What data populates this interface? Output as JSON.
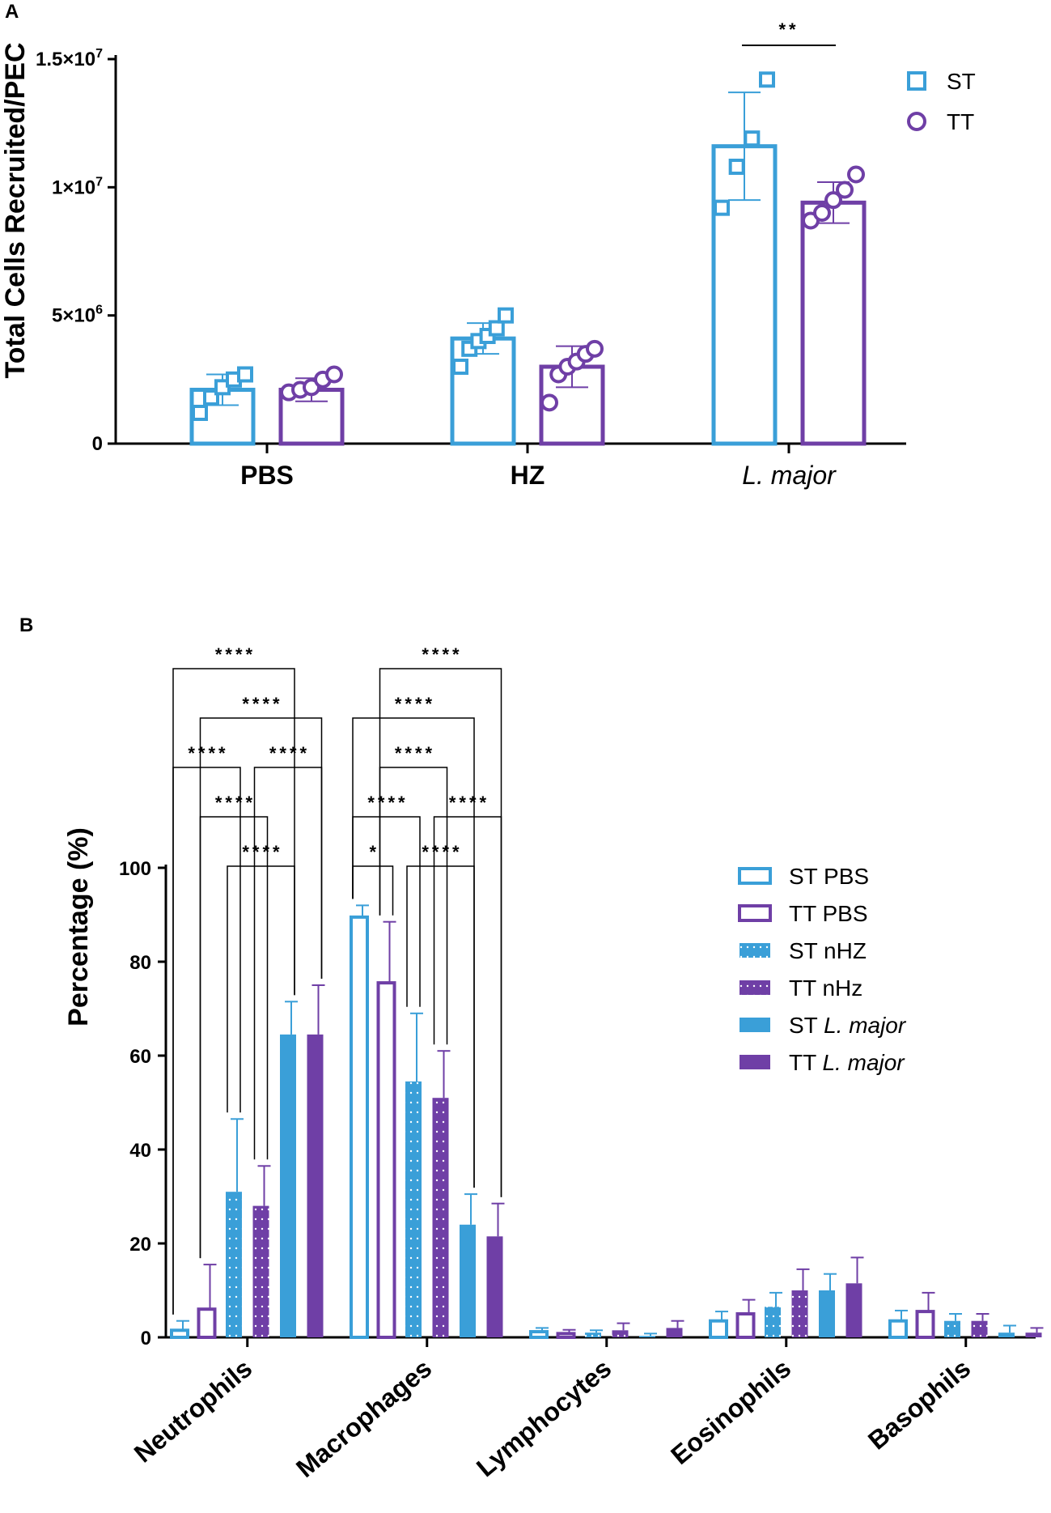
{
  "colors": {
    "st": "#3a9fd8",
    "tt": "#6f3fa6",
    "axis": "#000000"
  },
  "chart_data": [
    {
      "panel": "A",
      "type": "bar",
      "ylabel": "Total Cells Recruited/PEC",
      "y_ticks": [
        {
          "value": 0,
          "base": "0",
          "exp": ""
        },
        {
          "value": 5000000,
          "base": "5×10",
          "exp": "6"
        },
        {
          "value": 10000000,
          "base": "1×10",
          "exp": "7"
        },
        {
          "value": 15000000,
          "base": "1.5×10",
          "exp": "7"
        }
      ],
      "ylim": [
        0,
        15000000
      ],
      "categories": [
        "PBS",
        "HZ",
        "L. major"
      ],
      "italic_categories": [
        "L. major"
      ],
      "legend": [
        {
          "name": "ST",
          "marker": "square"
        },
        {
          "name": "TT",
          "marker": "circle"
        }
      ],
      "series": [
        {
          "name": "ST",
          "values": [
            2100000,
            4100000,
            11600000
          ],
          "errors": [
            600000,
            600000,
            2100000
          ],
          "points": [
            [
              1200000,
              1800000,
              2200000,
              2500000,
              2700000
            ],
            [
              3000000,
              3700000,
              4000000,
              4200000,
              4500000,
              5000000
            ],
            [
              9200000,
              10800000,
              11900000,
              14200000
            ]
          ]
        },
        {
          "name": "TT",
          "values": [
            2100000,
            3000000,
            9400000
          ],
          "errors": [
            450000,
            800000,
            800000
          ],
          "points": [
            [
              2000000,
              2100000,
              2200000,
              2500000,
              2700000
            ],
            [
              1600000,
              2700000,
              3000000,
              3200000,
              3500000,
              3700000
            ],
            [
              8700000,
              9000000,
              9500000,
              9900000,
              10500000
            ]
          ]
        }
      ],
      "significance": [
        {
          "label": "**",
          "category": "L. major",
          "between": [
            "ST",
            "TT"
          ]
        }
      ]
    },
    {
      "panel": "B",
      "type": "bar",
      "ylabel": "Percentage (%)",
      "ylim": [
        0,
        100
      ],
      "y_ticks": [
        0,
        20,
        40,
        60,
        80,
        100
      ],
      "categories": [
        "Neutrophils",
        "Macrophages",
        "Lymphocytes",
        "Eosinophils",
        "Basophils"
      ],
      "series": [
        {
          "name": "ST PBS",
          "label_main": "ST PBS",
          "label_italic": "",
          "color": "#3a9fd8",
          "fill": "hollow",
          "values": [
            1.5,
            89.5,
            1.2,
            3.5,
            3.5
          ],
          "errors": [
            2.0,
            2.5,
            0.8,
            2.0,
            2.2
          ]
        },
        {
          "name": "TT PBS",
          "label_main": "TT PBS",
          "label_italic": "",
          "color": "#6f3fa6",
          "fill": "hollow",
          "values": [
            6.0,
            75.5,
            0.8,
            5.0,
            5.5
          ],
          "errors": [
            9.5,
            13.0,
            0.8,
            3.0,
            4.0
          ]
        },
        {
          "name": "ST nHZ",
          "label_main": "ST nHZ",
          "label_italic": "",
          "color": "#3a9fd8",
          "fill": "dotted",
          "values": [
            31.0,
            54.5,
            1.0,
            6.5,
            3.5
          ],
          "errors": [
            15.5,
            14.5,
            0.5,
            3.0,
            1.5
          ]
        },
        {
          "name": "TT nHz",
          "label_main": "TT nHz",
          "label_italic": "",
          "color": "#6f3fa6",
          "fill": "dotted",
          "values": [
            28.0,
            51.0,
            1.5,
            10.0,
            3.5
          ],
          "errors": [
            8.5,
            10.0,
            1.5,
            4.5,
            1.5
          ]
        },
        {
          "name": "ST L. major",
          "label_main": "ST ",
          "label_italic": "L. major",
          "color": "#3a9fd8",
          "fill": "solid",
          "values": [
            64.5,
            24.0,
            0.3,
            10.0,
            1.0
          ],
          "errors": [
            7.0,
            6.5,
            0.5,
            3.5,
            1.5
          ]
        },
        {
          "name": "TT L. major",
          "label_main": "TT ",
          "label_italic": "L. major",
          "color": "#6f3fa6",
          "fill": "solid",
          "values": [
            64.5,
            21.5,
            2.0,
            11.5,
            1.0
          ],
          "errors": [
            10.5,
            7.0,
            1.5,
            5.5,
            1.0
          ]
        }
      ],
      "significance": [
        {
          "label": "****",
          "category": "Neutrophils",
          "from": 0,
          "to": 4,
          "level": 1
        },
        {
          "label": "****",
          "category": "Neutrophils",
          "from": 1,
          "to": 5,
          "level": 2
        },
        {
          "label": "****",
          "category": "Neutrophils",
          "from": 0,
          "to": 2,
          "level": 3
        },
        {
          "label": "****",
          "category": "Neutrophils",
          "from": 3,
          "to": 5,
          "level": 3
        },
        {
          "label": "****",
          "category": "Neutrophils",
          "from": 1,
          "to": 3,
          "level": 4
        },
        {
          "label": "****",
          "category": "Neutrophils",
          "from": 2,
          "to": 4,
          "level": 5
        },
        {
          "label": "****",
          "category": "Macrophages",
          "from": 1,
          "to": 5,
          "level": 1
        },
        {
          "label": "****",
          "category": "Macrophages",
          "from": 0,
          "to": 4,
          "level": 2
        },
        {
          "label": "****",
          "category": "Macrophages",
          "from": 1,
          "to": 3,
          "level": 3
        },
        {
          "label": "****",
          "category": "Macrophages",
          "from": 0,
          "to": 2,
          "level": 4
        },
        {
          "label": "****",
          "category": "Macrophages",
          "from": 3,
          "to": 5,
          "level": 4
        },
        {
          "label": "*",
          "category": "Macrophages",
          "from": 0,
          "to": 1,
          "level": 5
        },
        {
          "label": "****",
          "category": "Macrophages",
          "from": 2,
          "to": 4,
          "level": 5
        }
      ]
    }
  ]
}
